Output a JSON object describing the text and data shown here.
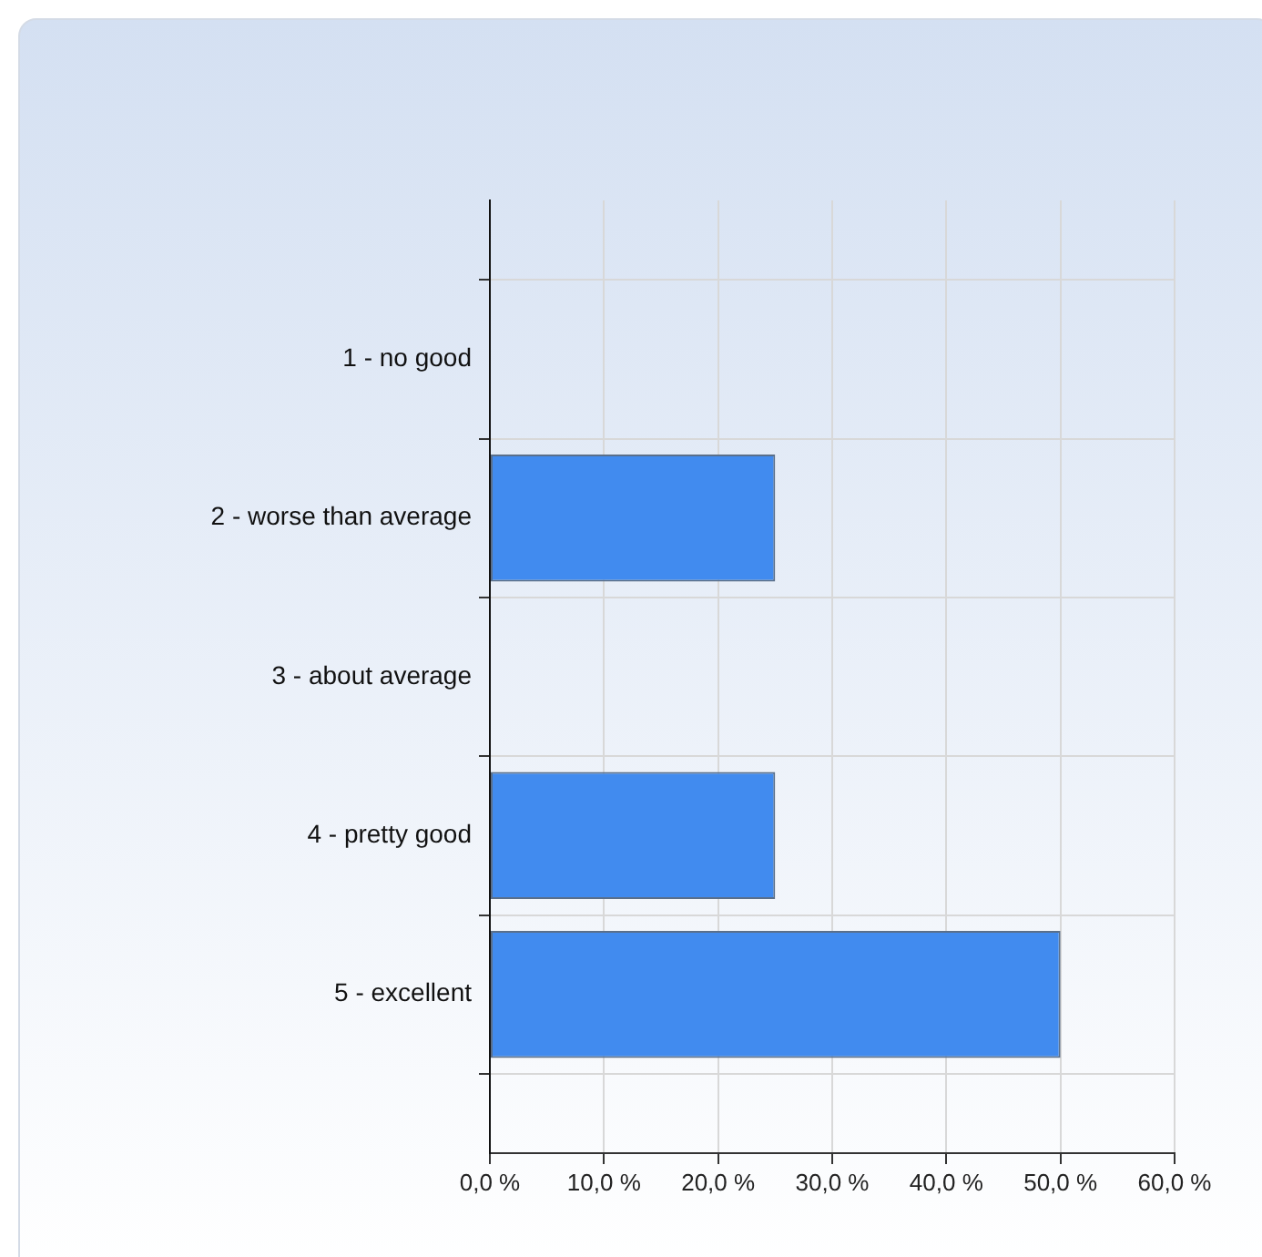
{
  "chart_data": {
    "type": "bar",
    "orientation": "horizontal",
    "categories": [
      "1 - no good",
      "2 - worse than average",
      "3 - about average",
      "4 - pretty good",
      "5 - excellent"
    ],
    "values": [
      0,
      25,
      0,
      25,
      50
    ],
    "color": "#418bef",
    "xlim": [
      0,
      60
    ],
    "xticks": [
      {
        "value": 0,
        "label": "0,0 %"
      },
      {
        "value": 10,
        "label": "10,0 %"
      },
      {
        "value": 20,
        "label": "20,0 %"
      },
      {
        "value": 30,
        "label": "30,0 %"
      },
      {
        "value": 40,
        "label": "40,0 %"
      },
      {
        "value": 50,
        "label": "50,0 %"
      },
      {
        "value": 60,
        "label": "60,0 %"
      }
    ],
    "grid": true,
    "legend": false
  }
}
